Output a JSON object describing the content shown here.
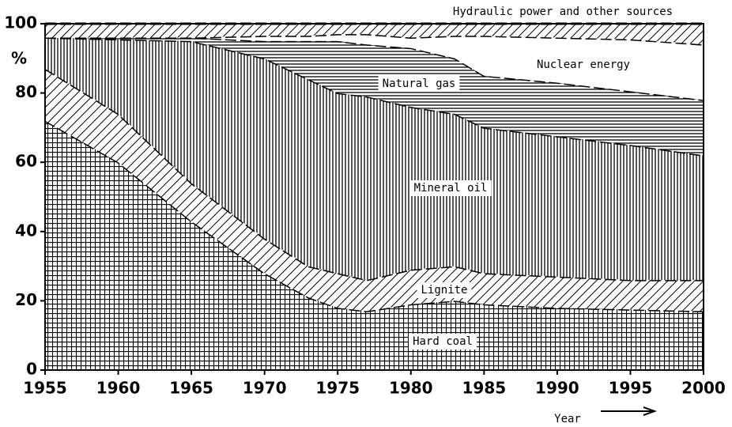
{
  "chart_data": {
    "type": "stacked_area",
    "x": [
      1955,
      1960,
      1965,
      1970,
      1973,
      1975,
      1977,
      1980,
      1983,
      1985,
      1990,
      1995,
      2000
    ],
    "series": [
      {
        "name": "Hard coal",
        "color": "#000000",
        "pattern": "grid",
        "values": [
          72,
          60,
          43,
          28,
          21,
          18,
          17,
          19,
          20,
          19,
          18,
          17.5,
          17
        ]
      },
      {
        "name": "Lignite",
        "color": "#000000",
        "pattern": "diagonal",
        "values": [
          15,
          14,
          11,
          10,
          9,
          10,
          9,
          10,
          10,
          9,
          9,
          8.5,
          9
        ]
      },
      {
        "name": "Mineral oil",
        "color": "#000000",
        "pattern": "vertical",
        "values": [
          9,
          21.5,
          41,
          52,
          54,
          52,
          53,
          47,
          44,
          42,
          40.5,
          39,
          36
        ]
      },
      {
        "name": "Natural gas",
        "color": "#000000",
        "pattern": "horizontal",
        "values": [
          0,
          0.5,
          1,
          5,
          11,
          15,
          15,
          17,
          16,
          15,
          15.5,
          15.5,
          16
        ]
      },
      {
        "name": "Nuclear energy",
        "color": "#000000",
        "pattern": "none",
        "values": [
          0,
          0,
          0,
          1.5,
          1.5,
          2,
          3,
          3,
          6.5,
          11.5,
          13,
          15,
          16
        ]
      },
      {
        "name": "Hydraulic power and other sources",
        "color": "#000000",
        "pattern": "diagonal",
        "values": [
          4,
          4,
          4,
          3.5,
          3.5,
          3,
          3,
          4,
          3.5,
          3.5,
          4,
          4.5,
          6
        ]
      }
    ],
    "y_label": "%",
    "x_label": "Year",
    "xlim": [
      1955,
      2000
    ],
    "xticks": [
      1955,
      1960,
      1965,
      1970,
      1975,
      1980,
      1985,
      1990,
      1995,
      2000
    ],
    "ylim": [
      0,
      100
    ],
    "yticks": [
      0,
      20,
      40,
      60,
      80,
      100
    ]
  }
}
